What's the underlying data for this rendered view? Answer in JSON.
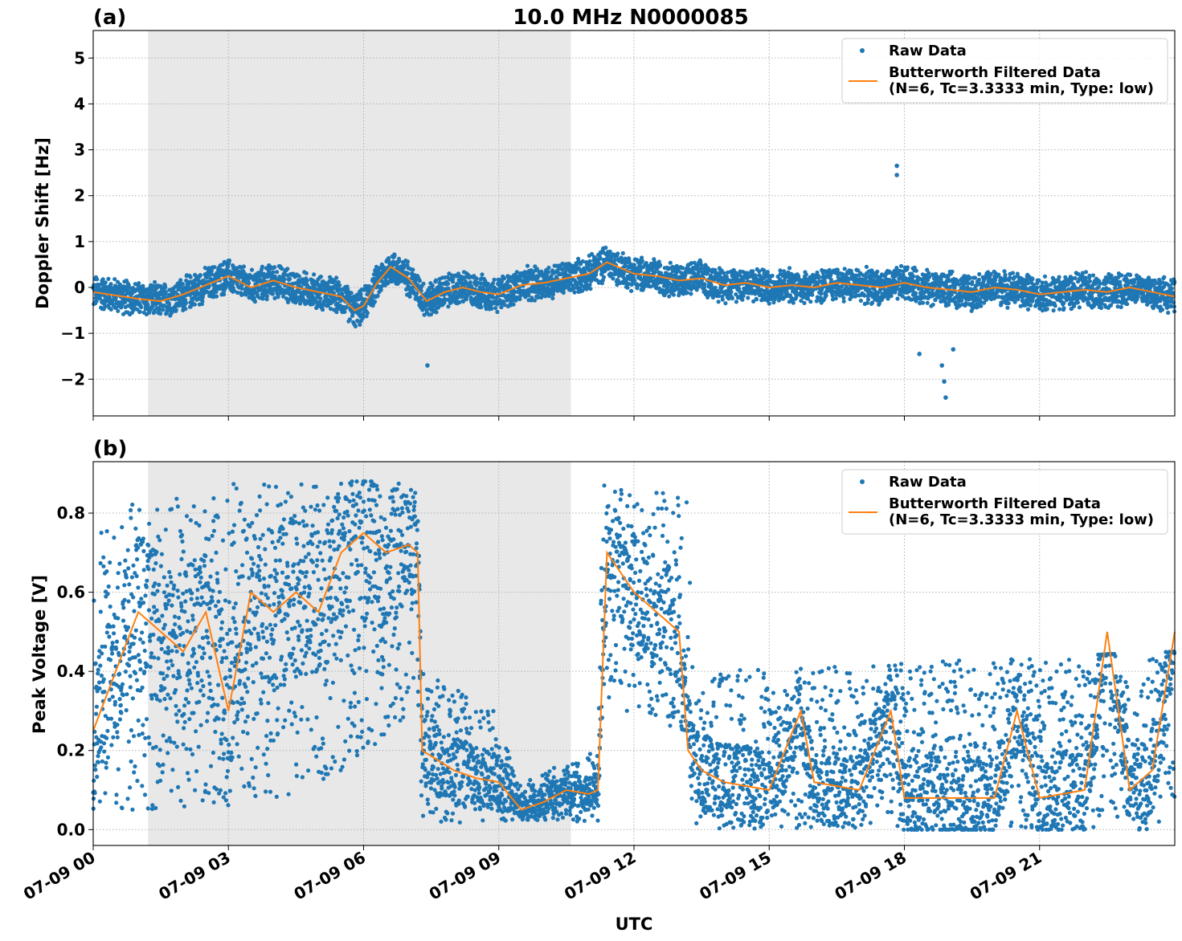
{
  "figure": {
    "title": "10.0 MHz N0000085",
    "xlabel": "UTC",
    "x_tick_labels": [
      "07-09 00",
      "07-09 03",
      "07-09 06",
      "07-09 09",
      "07-09 12",
      "07-09 15",
      "07-09 18",
      "07-09 21"
    ]
  },
  "chart_data": [
    {
      "type": "scatter",
      "panel_label": "(a)",
      "ylabel": "Doppler Shift [Hz]",
      "xlim": [
        "07-09 00:00",
        "07-10 00:00"
      ],
      "ylim": [
        -2.8,
        5.6
      ],
      "yticks": [
        -2,
        -1,
        0,
        1,
        2,
        3,
        4,
        5
      ],
      "ytick_labels": [
        "−2",
        "−1",
        "0",
        "1",
        "2",
        "3",
        "4",
        "5"
      ],
      "grid": true,
      "legend_position": "top-right",
      "shaded_region": {
        "x_start": "07-09 01:13",
        "x_end": "07-09 10:36",
        "color": "#e8e8e8"
      },
      "series": [
        {
          "name": "Raw Data",
          "style": "points",
          "color": "#1f77b4",
          "description_spread_hz": 0.35,
          "outliers": [
            {
              "x": "07-09 17:50",
              "y": 2.65
            },
            {
              "x": "07-09 17:50",
              "y": 2.45
            },
            {
              "x": "07-09 18:20",
              "y": -1.45
            },
            {
              "x": "07-09 18:50",
              "y": -1.7
            },
            {
              "x": "07-09 18:53",
              "y": -2.05
            },
            {
              "x": "07-09 18:55",
              "y": -2.4
            },
            {
              "x": "07-09 19:05",
              "y": -1.35
            },
            {
              "x": "07-09 07:25",
              "y": -1.7
            }
          ]
        },
        {
          "name": "Butterworth Filtered Data\n(N=6, Tc=3.3333 min, Type: low)",
          "style": "line",
          "color": "#ff7f0e",
          "x_hours": [
            0,
            1,
            1.5,
            2,
            2.5,
            3,
            3.5,
            4,
            4.5,
            5,
            5.5,
            5.8,
            6,
            6.3,
            6.6,
            7,
            7.4,
            7.8,
            8.2,
            8.6,
            9,
            9.5,
            10,
            10.5,
            11,
            11.4,
            12,
            12.5,
            13,
            13.5,
            14,
            14.5,
            15,
            15.5,
            16,
            16.5,
            17,
            17.5,
            18,
            18.5,
            19,
            19.5,
            20,
            20.5,
            21,
            21.5,
            22,
            22.5,
            23,
            23.5,
            24
          ],
          "values": [
            -0.1,
            -0.25,
            -0.3,
            -0.15,
            0.05,
            0.25,
            0.0,
            0.15,
            0.0,
            -0.1,
            -0.2,
            -0.5,
            -0.4,
            0.1,
            0.45,
            0.2,
            -0.3,
            -0.1,
            0.0,
            -0.1,
            -0.15,
            0.05,
            0.1,
            0.2,
            0.3,
            0.55,
            0.3,
            0.25,
            0.15,
            0.2,
            0.05,
            0.1,
            0.0,
            0.05,
            0.0,
            0.1,
            0.05,
            0.0,
            0.1,
            0.0,
            -0.05,
            -0.1,
            0.0,
            -0.05,
            -0.15,
            -0.1,
            -0.05,
            -0.1,
            0.0,
            -0.1,
            -0.2
          ]
        }
      ]
    },
    {
      "type": "scatter",
      "panel_label": "(b)",
      "ylabel": "Peak Voltage [V]",
      "xlim": [
        "07-09 00:00",
        "07-10 00:00"
      ],
      "ylim": [
        -0.04,
        0.93
      ],
      "yticks": [
        0.0,
        0.2,
        0.4,
        0.6,
        0.8
      ],
      "ytick_labels": [
        "0.0",
        "0.2",
        "0.4",
        "0.6",
        "0.8"
      ],
      "grid": true,
      "legend_position": "top-right",
      "shaded_region": {
        "x_start": "07-09 01:13",
        "x_end": "07-09 10:36",
        "color": "#e8e8e8"
      },
      "series": [
        {
          "name": "Raw Data",
          "style": "points",
          "color": "#1f77b4",
          "envelope_hours": [
            0,
            1.2,
            3,
            5,
            7.2,
            7.3,
            9.0,
            9.4,
            11.2,
            11.3,
            13.2,
            13.3,
            24
          ],
          "envelope_upper": [
            0.75,
            0.86,
            0.88,
            0.88,
            0.88,
            0.4,
            0.3,
            0.12,
            0.2,
            0.87,
            0.87,
            0.4,
            0.45
          ],
          "envelope_lower": [
            0.05,
            0.05,
            0.05,
            0.1,
            0.3,
            0.0,
            0.02,
            0.02,
            0.02,
            0.3,
            0.25,
            0.0,
            0.0
          ]
        },
        {
          "name": "Butterworth Filtered Data\n(N=6, Tc=3.3333 min, Type: low)",
          "style": "line",
          "color": "#ff7f0e",
          "x_hours": [
            0,
            0.5,
            1,
            1.5,
            2,
            2.5,
            3,
            3.5,
            4,
            4.5,
            5,
            5.5,
            6,
            6.5,
            7,
            7.2,
            7.3,
            8,
            8.5,
            9,
            9.5,
            10,
            10.5,
            11,
            11.2,
            11.4,
            12,
            12.5,
            13,
            13.2,
            13.5,
            14,
            15,
            15.7,
            16,
            17,
            17.7,
            18,
            19,
            20,
            20.5,
            21,
            22,
            22.5,
            23,
            23.5,
            24
          ],
          "values": [
            0.25,
            0.4,
            0.55,
            0.5,
            0.45,
            0.55,
            0.3,
            0.6,
            0.55,
            0.6,
            0.55,
            0.7,
            0.75,
            0.7,
            0.72,
            0.7,
            0.2,
            0.15,
            0.13,
            0.12,
            0.05,
            0.07,
            0.1,
            0.09,
            0.1,
            0.7,
            0.6,
            0.55,
            0.5,
            0.2,
            0.15,
            0.12,
            0.1,
            0.3,
            0.12,
            0.1,
            0.3,
            0.08,
            0.08,
            0.08,
            0.3,
            0.08,
            0.1,
            0.5,
            0.1,
            0.15,
            0.5
          ]
        }
      ]
    }
  ]
}
